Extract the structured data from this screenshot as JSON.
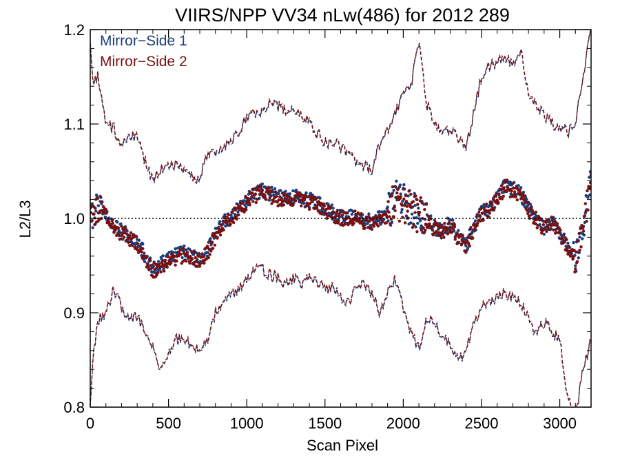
{
  "chart_data": {
    "type": "scatter",
    "title": "VIIRS/NPP VV34 nLw(486) for 2012 289",
    "xlabel": "Scan Pixel",
    "ylabel": "L2/L3",
    "xlim": [
      0,
      3200
    ],
    "ylim": [
      0.8,
      1.2
    ],
    "xticks": [
      0,
      500,
      1000,
      1500,
      2000,
      2500,
      3000
    ],
    "yticks": [
      0.8,
      0.9,
      1.0,
      1.1,
      1.2
    ],
    "xtick_labels": [
      "0",
      "500",
      "1000",
      "1500",
      "2000",
      "2500",
      "3000"
    ],
    "ytick_labels": [
      "0.8",
      "0.9",
      "1.0",
      "1.1",
      "1.2"
    ],
    "reference_line": 1.0,
    "legend_position": "top-left",
    "colors": {
      "ms1": "#1b3f7a",
      "ms2": "#7a1010"
    },
    "series": [
      {
        "name": "Mirror−Side 1",
        "style": "points"
      },
      {
        "name": "Mirror−Side 2",
        "style": "points"
      }
    ],
    "mean": {
      "x": [
        0,
        50,
        100,
        150,
        200,
        250,
        300,
        350,
        400,
        450,
        500,
        550,
        600,
        650,
        700,
        750,
        800,
        850,
        900,
        950,
        1000,
        1050,
        1100,
        1150,
        1200,
        1250,
        1300,
        1350,
        1400,
        1450,
        1500,
        1550,
        1600,
        1650,
        1700,
        1750,
        1800,
        1850,
        1900,
        1950,
        2000,
        2050,
        2100,
        2150,
        2200,
        2250,
        2300,
        2350,
        2400,
        2450,
        2500,
        2550,
        2600,
        2650,
        2700,
        2750,
        2800,
        2850,
        2900,
        2950,
        3000,
        3050,
        3100,
        3150,
        3200
      ],
      "y": [
        1.0,
        1.012,
        1.005,
        0.99,
        0.985,
        0.98,
        0.975,
        0.96,
        0.945,
        0.95,
        0.955,
        0.96,
        0.962,
        0.958,
        0.955,
        0.965,
        0.982,
        0.995,
        1.0,
        1.01,
        1.018,
        1.025,
        1.028,
        1.025,
        1.022,
        1.02,
        1.022,
        1.02,
        1.018,
        1.015,
        1.01,
        1.005,
        1.002,
        1.0,
        1.002,
        0.998,
        0.995,
        1.0,
        1.005,
        1.02,
        1.015,
        1.01,
        1.005,
        0.998,
        0.99,
        0.985,
        0.995,
        0.98,
        0.97,
        0.99,
        1.005,
        1.01,
        1.02,
        1.035,
        1.03,
        1.025,
        1.01,
        1.0,
        0.99,
        0.995,
        0.985,
        0.97,
        0.955,
        0.99,
        1.04
      ]
    },
    "upper": {
      "x": [
        0,
        20,
        50,
        100,
        150,
        200,
        250,
        300,
        350,
        400,
        450,
        500,
        550,
        600,
        650,
        700,
        750,
        800,
        850,
        900,
        950,
        1000,
        1050,
        1100,
        1150,
        1200,
        1250,
        1300,
        1350,
        1400,
        1450,
        1500,
        1550,
        1600,
        1650,
        1700,
        1750,
        1800,
        1850,
        1900,
        1950,
        2000,
        2050,
        2100,
        2150,
        2200,
        2250,
        2300,
        2350,
        2400,
        2450,
        2500,
        2550,
        2600,
        2650,
        2700,
        2750,
        2800,
        2850,
        2900,
        2950,
        3000,
        3050,
        3100,
        3150,
        3200
      ],
      "y": [
        1.19,
        1.14,
        1.15,
        1.1,
        1.095,
        1.075,
        1.09,
        1.085,
        1.06,
        1.04,
        1.05,
        1.055,
        1.055,
        1.05,
        1.045,
        1.04,
        1.07,
        1.065,
        1.075,
        1.08,
        1.09,
        1.105,
        1.11,
        1.115,
        1.12,
        1.118,
        1.115,
        1.115,
        1.11,
        1.1,
        1.09,
        1.08,
        1.08,
        1.075,
        1.07,
        1.06,
        1.055,
        1.05,
        1.08,
        1.095,
        1.11,
        1.13,
        1.14,
        1.19,
        1.12,
        1.1,
        1.09,
        1.095,
        1.085,
        1.075,
        1.11,
        1.15,
        1.16,
        1.165,
        1.17,
        1.16,
        1.18,
        1.13,
        1.12,
        1.11,
        1.1,
        1.095,
        1.09,
        1.1,
        1.15,
        1.2
      ]
    },
    "lower": {
      "x": [
        0,
        20,
        50,
        100,
        150,
        200,
        250,
        300,
        350,
        400,
        450,
        500,
        550,
        600,
        650,
        700,
        750,
        800,
        850,
        900,
        950,
        1000,
        1050,
        1100,
        1150,
        1200,
        1250,
        1300,
        1350,
        1400,
        1450,
        1500,
        1550,
        1600,
        1650,
        1700,
        1750,
        1800,
        1850,
        1900,
        1950,
        2000,
        2050,
        2100,
        2150,
        2200,
        2250,
        2300,
        2350,
        2400,
        2450,
        2500,
        2550,
        2600,
        2650,
        2700,
        2750,
        2800,
        2850,
        2900,
        2950,
        3000,
        3050,
        3100,
        3150,
        3200
      ],
      "y": [
        0.8,
        0.86,
        0.89,
        0.9,
        0.925,
        0.905,
        0.89,
        0.895,
        0.88,
        0.86,
        0.84,
        0.855,
        0.87,
        0.875,
        0.86,
        0.865,
        0.87,
        0.9,
        0.91,
        0.92,
        0.925,
        0.935,
        0.945,
        0.945,
        0.94,
        0.935,
        0.93,
        0.935,
        0.93,
        0.935,
        0.93,
        0.925,
        0.925,
        0.915,
        0.91,
        0.925,
        0.93,
        0.92,
        0.9,
        0.92,
        0.935,
        0.905,
        0.88,
        0.86,
        0.895,
        0.885,
        0.875,
        0.865,
        0.85,
        0.855,
        0.89,
        0.905,
        0.91,
        0.915,
        0.92,
        0.915,
        0.91,
        0.895,
        0.875,
        0.89,
        0.88,
        0.87,
        0.81,
        0.79,
        0.84,
        0.87
      ]
    }
  }
}
